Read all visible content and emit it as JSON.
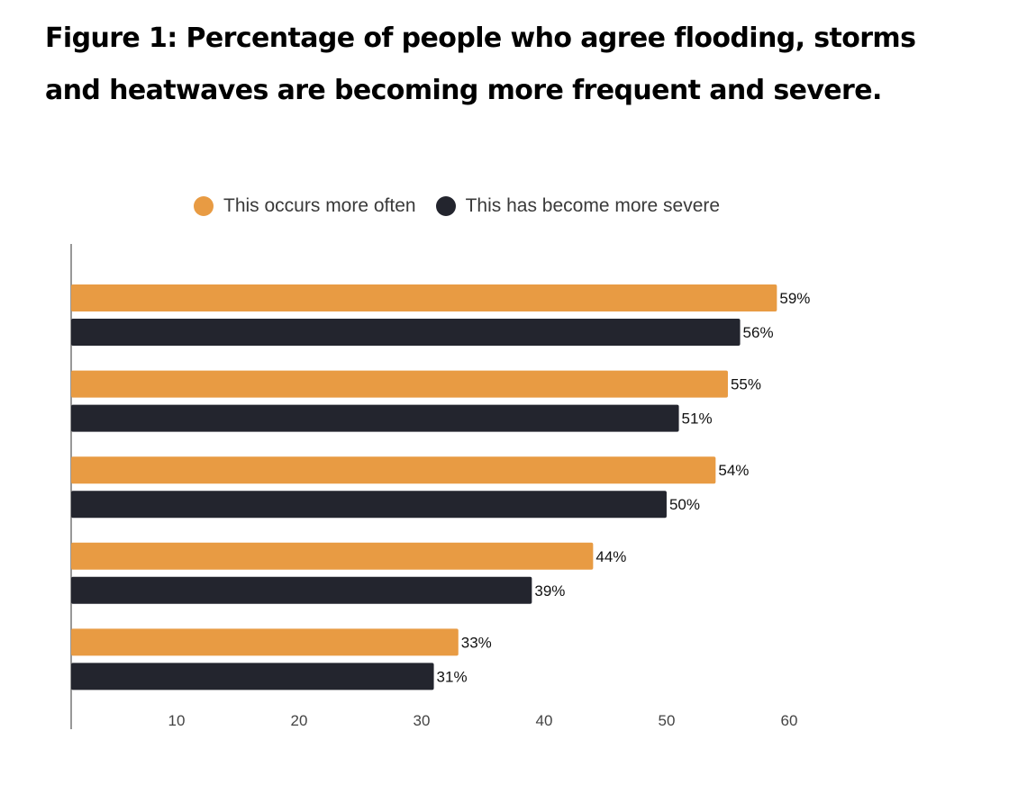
{
  "title": "Figure 1: Percentage of people who agree flooding, storms and heatwaves are becoming more frequent and severe.",
  "chart_data": {
    "type": "bar",
    "orientation": "horizontal",
    "title": "Figure 1: Percentage of people who agree flooding, storms and heatwaves are becoming more frequent and severe.",
    "xlabel": "",
    "ylabel": "",
    "categories": [
      "",
      "",
      "",
      "",
      ""
    ],
    "series": [
      {
        "name": "This occurs more often",
        "color": "#e89b43",
        "values": [
          59,
          55,
          54,
          44,
          33
        ],
        "labels": [
          "59%",
          "55%",
          "54%",
          "44%",
          "33%"
        ]
      },
      {
        "name": "This has become more severe",
        "color": "#23252e",
        "values": [
          56,
          51,
          50,
          39,
          31
        ],
        "labels": [
          "56%",
          "51%",
          "50%",
          "39%",
          "31%"
        ]
      }
    ],
    "xlim": [
      1.4,
      65
    ],
    "xticks": [
      10,
      20,
      30,
      40,
      50,
      60
    ],
    "xtick_labels": [
      "10",
      "20",
      "30",
      "40",
      "50",
      "60"
    ],
    "grid": false,
    "legend_position": "top-center"
  }
}
